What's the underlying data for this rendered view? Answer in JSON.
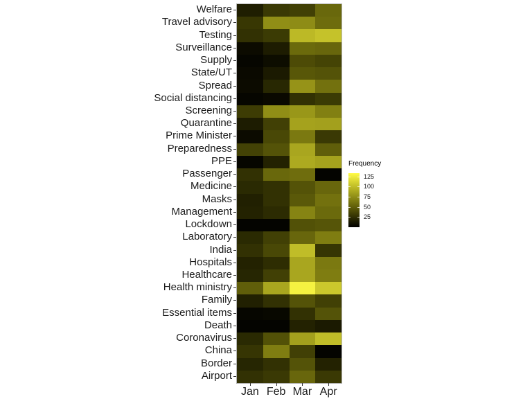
{
  "figure": {
    "background": "#ffffff",
    "panel_border_color": "#b5b5b5",
    "axis_text_color": "#1a1a1a"
  },
  "chart_data": {
    "type": "heatmap",
    "title": "",
    "xlabel": "",
    "ylabel": "",
    "x_labels": [
      "Jan",
      "Feb",
      "Mar",
      "Apr"
    ],
    "y_labels": [
      "Welfare",
      "Travel advisory",
      "Testing",
      "Surveillance",
      "Supply",
      "State/UT",
      "Spread",
      "Social distancing",
      "Screening",
      "Quarantine",
      "Prime Minister",
      "Preparedness",
      "PPE",
      "Passenger",
      "Medicine",
      "Masks",
      "Management",
      "Lockdown",
      "Laboratory",
      "India",
      "Hospitals",
      "Healthcare",
      "Health ministry",
      "Family",
      "Essential items",
      "Death",
      "Coronavirus",
      "China",
      "Border",
      "Airport"
    ],
    "values": [
      [
        16,
        30,
        34,
        55
      ],
      [
        29,
        75,
        74,
        57
      ],
      [
        26,
        31,
        98,
        103
      ],
      [
        6,
        15,
        56,
        54
      ],
      [
        3,
        7,
        40,
        36
      ],
      [
        5,
        14,
        46,
        44
      ],
      [
        6,
        21,
        78,
        60
      ],
      [
        3,
        5,
        26,
        31
      ],
      [
        32,
        75,
        80,
        68
      ],
      [
        15,
        34,
        86,
        85
      ],
      [
        6,
        38,
        64,
        30
      ],
      [
        35,
        44,
        88,
        50
      ],
      [
        3,
        18,
        90,
        86
      ],
      [
        26,
        55,
        58,
        2
      ],
      [
        22,
        26,
        44,
        54
      ],
      [
        17,
        26,
        47,
        60
      ],
      [
        18,
        23,
        70,
        56
      ],
      [
        2,
        2,
        43,
        45
      ],
      [
        22,
        34,
        54,
        66
      ],
      [
        26,
        38,
        100,
        28
      ],
      [
        18,
        24,
        88,
        64
      ],
      [
        20,
        34,
        88,
        66
      ],
      [
        50,
        88,
        128,
        106
      ],
      [
        17,
        26,
        44,
        34
      ],
      [
        3,
        4,
        26,
        44
      ],
      [
        2,
        2,
        18,
        14
      ],
      [
        22,
        43,
        85,
        100
      ],
      [
        28,
        66,
        34,
        2
      ],
      [
        20,
        26,
        44,
        18
      ],
      [
        26,
        30,
        54,
        30
      ]
    ],
    "legend": {
      "title": "Frequency",
      "ticks": [
        125,
        100,
        75,
        50,
        25
      ],
      "scale_min": 0,
      "scale_max": 133,
      "color_low": "#000000",
      "color_high": "#fffb40",
      "position": "right"
    },
    "grid": false,
    "x_axis_position": "bottom",
    "y_axis_position": "left"
  }
}
